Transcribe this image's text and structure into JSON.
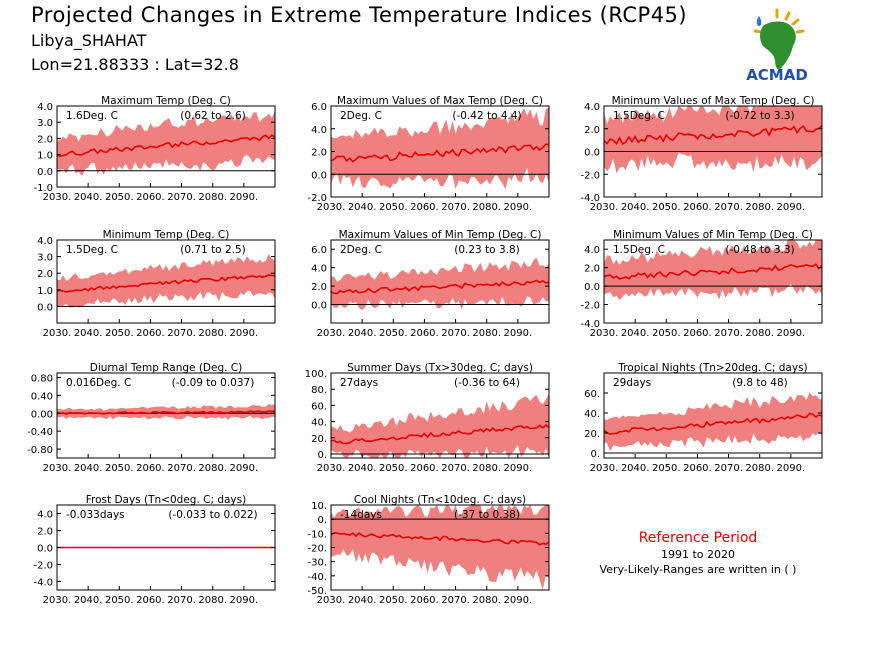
{
  "header": {
    "title": "Projected Changes in Extreme Temperature Indices (RCP45)",
    "location": "Libya_SHAHAT",
    "coords": "Lon=21.88333 : Lat=32.8"
  },
  "logo": {
    "text": "ACMAD",
    "icon": "africa-map-logo"
  },
  "reference": {
    "title": "Reference Period",
    "years": "1991 to 2020",
    "note": "Very-Likely-Ranges are written in ( )"
  },
  "colors": {
    "band": "#f08080",
    "line": "#e80000",
    "zero": "#000000"
  },
  "chart_data": [
    {
      "type": "area",
      "title": "Maximum Temp (Deg. C)",
      "change": "1.6Deg. C",
      "range": "(0.62 to 2.6)",
      "x_range": [
        2030,
        2100
      ],
      "ylim": [
        -1.0,
        4.0
      ],
      "yticks": [
        "4.0",
        "3.0",
        "2.0",
        "1.0",
        "0.0",
        "-1.0"
      ],
      "xticks": [
        "2030.",
        "2040.",
        "2050.",
        "2060.",
        "2070.",
        "2080.",
        "2090."
      ],
      "trend": [
        [
          2030,
          1.0
        ],
        [
          2100,
          2.1
        ]
      ],
      "band_halfwidth": [
        0.9,
        1.3
      ],
      "noise": 0.15
    },
    {
      "type": "area",
      "title": "Maximum Values of Max Temp (Deg. C)",
      "change": "2Deg. C",
      "range": "(-0.42 to 4.4)",
      "x_range": [
        2030,
        2100
      ],
      "ylim": [
        -2.0,
        6.0
      ],
      "yticks": [
        "6.0",
        "4.0",
        "2.0",
        "0.0",
        "-2.0"
      ],
      "xticks": [
        "2030.",
        "2040.",
        "2050.",
        "2060.",
        "2070.",
        "2080.",
        "2090."
      ],
      "trend": [
        [
          2030,
          1.2
        ],
        [
          2100,
          2.5
        ]
      ],
      "band_halfwidth": [
        1.8,
        2.4
      ],
      "noise": 0.35
    },
    {
      "type": "area",
      "title": "Minimum Values of Max Temp (Deg. C)",
      "change": "1.5Deg. C",
      "range": "(-0.72 to 3.3)",
      "x_range": [
        2030,
        2100
      ],
      "ylim": [
        -4.0,
        4.0
      ],
      "yticks": [
        "4.0",
        "2.0",
        "0.0",
        "-2.0",
        "-4.0"
      ],
      "xticks": [
        "2030.",
        "2040.",
        "2050.",
        "2060.",
        "2070.",
        "2080.",
        "2090."
      ],
      "trend": [
        [
          2030,
          0.9
        ],
        [
          2100,
          2.0
        ]
      ],
      "band_halfwidth": [
        1.8,
        2.5
      ],
      "noise": 0.35
    },
    {
      "type": "area",
      "title": "Minimum Temp (Deg. C)",
      "change": "1.5Deg. C",
      "range": "(0.71 to 2.5)",
      "x_range": [
        2030,
        2100
      ],
      "ylim": [
        -1.0,
        4.0
      ],
      "yticks": [
        "4.0",
        "3.0",
        "2.0",
        "1.0",
        "0.0"
      ],
      "xticks": [
        "2030.",
        "2040.",
        "2050.",
        "2060.",
        "2070.",
        "2080.",
        "2090."
      ],
      "trend": [
        [
          2030,
          0.9
        ],
        [
          2100,
          1.9
        ]
      ],
      "band_halfwidth": [
        0.7,
        1.0
      ],
      "noise": 0.1
    },
    {
      "type": "area",
      "title": "Maximum Values of Min Temp (Deg. C)",
      "change": "2Deg. C",
      "range": "(0.23 to 3.8)",
      "x_range": [
        2030,
        2100
      ],
      "ylim": [
        -2.0,
        7.0
      ],
      "yticks": [
        "6.0",
        "4.0",
        "2.0",
        "0.0"
      ],
      "xticks": [
        "2030.",
        "2040.",
        "2050.",
        "2060.",
        "2070.",
        "2080.",
        "2090."
      ],
      "trend": [
        [
          2030,
          1.3
        ],
        [
          2100,
          2.5
        ]
      ],
      "band_halfwidth": [
        1.3,
        1.9
      ],
      "noise": 0.25
    },
    {
      "type": "area",
      "title": "Minimum Values of Min Temp (Deg. C)",
      "change": "1.5Deg. C",
      "range": "(-0.48 to 3.3)",
      "x_range": [
        2030,
        2100
      ],
      "ylim": [
        -4.0,
        5.0
      ],
      "yticks": [
        "4.0",
        "2.0",
        "0.0",
        "-2.0",
        "-4.0"
      ],
      "xticks": [
        "2030.",
        "2040.",
        "2050.",
        "2060.",
        "2070.",
        "2080.",
        "2090."
      ],
      "trend": [
        [
          2030,
          0.9
        ],
        [
          2100,
          2.2
        ]
      ],
      "band_halfwidth": [
        1.7,
        2.3
      ],
      "noise": 0.3
    },
    {
      "type": "area",
      "title": "Diurnal Temp Range (Deg. C)",
      "change": "0.016Deg. C",
      "range": "(-0.09 to 0.037)",
      "x_range": [
        2030,
        2100
      ],
      "ylim": [
        -1.0,
        0.9
      ],
      "yticks": [
        "0.80",
        "0.40",
        "0.00",
        "-0.40",
        "-0.80"
      ],
      "xticks": [
        "2030.",
        "2040.",
        "2050.",
        "2060.",
        "2070.",
        "2080.",
        "2090."
      ],
      "trend": [
        [
          2030,
          0.0
        ],
        [
          2100,
          0.03
        ]
      ],
      "band_halfwidth": [
        0.08,
        0.12
      ],
      "noise": 0.02
    },
    {
      "type": "area",
      "title": "Summer Days (Tx>30deg. C; days)",
      "change": "27days",
      "range": "(-0.36 to 64)",
      "x_range": [
        2030,
        2100
      ],
      "ylim": [
        -5,
        100
      ],
      "yticks": [
        "100.",
        "80.",
        "60.",
        "40.",
        "20.",
        "0."
      ],
      "xticks": [
        "2030.",
        "2040.",
        "2050.",
        "2060.",
        "2070.",
        "2080.",
        "2090."
      ],
      "trend": [
        [
          2030,
          14
        ],
        [
          2100,
          35
        ]
      ],
      "band_halfwidth": [
        14,
        30
      ],
      "noise": 2.5
    },
    {
      "type": "area",
      "title": "Tropical Nights (Tn>20deg. C; days)",
      "change": "29days",
      "range": "(9.8 to 48)",
      "x_range": [
        2030,
        2100
      ],
      "ylim": [
        -5,
        80
      ],
      "yticks": [
        "60.",
        "40.",
        "20.",
        "0."
      ],
      "xticks": [
        "2030.",
        "2040.",
        "2050.",
        "2060.",
        "2070.",
        "2080.",
        "2090."
      ],
      "trend": [
        [
          2030,
          20
        ],
        [
          2100,
          38
        ]
      ],
      "band_halfwidth": [
        12,
        18
      ],
      "noise": 2.5
    },
    {
      "type": "area",
      "title": "Frost Days (Tn<0deg. C; days)",
      "change": "-0.033days",
      "range": "(-0.033 to 0.022)",
      "x_range": [
        2030,
        2100
      ],
      "ylim": [
        -5.0,
        5.0
      ],
      "yticks": [
        "4.0",
        "2.0",
        "0.0",
        "-2.0",
        "-4.0"
      ],
      "xticks": [
        "2030.",
        "2040.",
        "2050.",
        "2060.",
        "2070.",
        "2080.",
        "2090."
      ],
      "trend": [
        [
          2030,
          0.0
        ],
        [
          2100,
          0.0
        ]
      ],
      "band_halfwidth": [
        0.05,
        0.05
      ],
      "noise": 0.0
    },
    {
      "type": "area",
      "title": "Cool Nights (Tn<10deg. C; days)",
      "change": "-14days",
      "range": "(-37 to 0.38)",
      "x_range": [
        2030,
        2100
      ],
      "ylim": [
        -50,
        10
      ],
      "yticks": [
        "10.",
        "0.",
        "-10.",
        "-20.",
        "-30.",
        "-40.",
        "-50."
      ],
      "xticks": [
        "2030.",
        "2040.",
        "2050.",
        "2060.",
        "2070.",
        "2080.",
        "2090."
      ],
      "trend": [
        [
          2030,
          -10
        ],
        [
          2100,
          -17
        ]
      ],
      "band_halfwidth": [
        12,
        24
      ],
      "noise": 1.5
    }
  ]
}
